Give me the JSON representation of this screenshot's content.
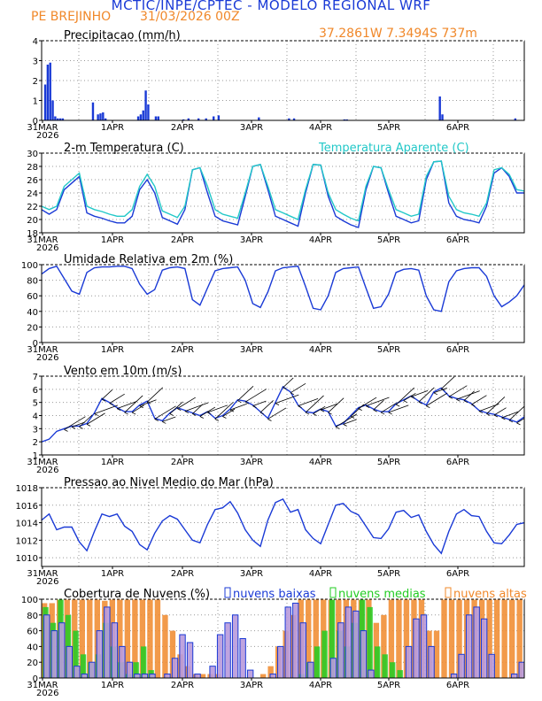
{
  "header": {
    "title": "MCTIC/INPE/CPTEC - MODELO REGIONAL WRF",
    "location": "PE BREJINHO",
    "date": "31/03/2026 00Z",
    "coords": "37.2861W 7.3494S 737m"
  },
  "colors": {
    "blue": "#1a3ad6",
    "orange": "#f0882a",
    "cyan": "#22c8c8",
    "green": "#22cc22",
    "grid": "#999999"
  },
  "x_labels": [
    "31MAR",
    "1APR",
    "2APR",
    "3APR",
    "4APR",
    "5APR",
    "6APR"
  ],
  "x_year": "2026",
  "chart_data": [
    {
      "type": "bar",
      "title": "Precipitacao (mm/h)",
      "ylim": [
        0,
        4
      ],
      "yticks": [
        "0",
        "1",
        "2",
        "3",
        "4"
      ],
      "x_unit": "hours since 31MAR 00Z",
      "series": [
        {
          "name": "Precipitacao",
          "color": "#1a3ad6",
          "x": [
            1,
            2,
            3,
            4,
            5,
            6,
            7,
            8,
            20,
            22,
            23,
            24,
            25,
            38,
            39,
            40,
            41,
            42,
            45,
            46,
            56,
            58,
            62,
            65,
            68,
            70,
            86,
            98,
            100,
            120,
            121,
            158,
            159,
            188
          ],
          "values": [
            1.8,
            2.8,
            2.9,
            1.0,
            0.2,
            0.1,
            0.1,
            0.1,
            0.9,
            0.3,
            0.35,
            0.4,
            0.1,
            0.2,
            0.3,
            0.5,
            1.5,
            0.8,
            0.2,
            0.2,
            0.05,
            0.1,
            0.1,
            0.1,
            0.2,
            0.25,
            0.15,
            0.1,
            0.1,
            0.05,
            0.05,
            1.2,
            0.3,
            0.1
          ]
        }
      ]
    },
    {
      "type": "line",
      "title": "2-m Temperatura (C)",
      "ylim": [
        18,
        30
      ],
      "yticks": [
        "18",
        "20",
        "22",
        "24",
        "26",
        "28",
        "30"
      ],
      "legend": "Temperatura Aparente (C)",
      "x": [
        0,
        3,
        6,
        9,
        12,
        15,
        18,
        21,
        24,
        27,
        30,
        33,
        36,
        39,
        42,
        45,
        48,
        51,
        54,
        57,
        60,
        63,
        66,
        69,
        72,
        75,
        78,
        81,
        84,
        87,
        90,
        93,
        96,
        99,
        102,
        105,
        108,
        111,
        114,
        117,
        120,
        123,
        126,
        129,
        132,
        135,
        138,
        141,
        144,
        147,
        150,
        153,
        156,
        159,
        162,
        165,
        168,
        171,
        174,
        177,
        180,
        183,
        186,
        189,
        192
      ],
      "series": [
        {
          "name": "Temperatura",
          "color": "#1a3ad6",
          "values": [
            21.5,
            20.8,
            21.5,
            24.5,
            25.5,
            26.5,
            21.0,
            20.5,
            20.2,
            19.8,
            19.5,
            19.5,
            20.5,
            24.5,
            26.0,
            24.0,
            20.3,
            19.8,
            19.3,
            21.5,
            27.5,
            27.8,
            24.0,
            20.5,
            19.8,
            19.5,
            19.2,
            23.5,
            28.0,
            28.3,
            24.5,
            20.5,
            20.0,
            19.5,
            19.0,
            24.0,
            28.3,
            28.2,
            23.5,
            20.5,
            19.8,
            19.2,
            18.8,
            24.5,
            28.0,
            27.8,
            24.0,
            20.5,
            20.0,
            19.5,
            19.8,
            26.0,
            28.7,
            28.8,
            22.5,
            20.5,
            20.0,
            19.8,
            19.5,
            22.0,
            27.0,
            27.8,
            26.5,
            24.0,
            24.0
          ]
        },
        {
          "name": "Temperatura Aparente",
          "color": "#22c8c8",
          "values": [
            22.0,
            21.5,
            22.0,
            25.0,
            26.0,
            27.0,
            22.0,
            21.5,
            21.2,
            20.8,
            20.5,
            20.5,
            21.5,
            25.0,
            26.8,
            25.0,
            21.3,
            20.8,
            20.3,
            22.0,
            27.5,
            27.8,
            25.0,
            21.5,
            20.8,
            20.5,
            20.2,
            24.0,
            28.0,
            28.3,
            25.0,
            21.5,
            21.0,
            20.5,
            20.0,
            24.5,
            28.3,
            28.2,
            24.0,
            21.5,
            20.8,
            20.2,
            19.8,
            25.0,
            28.0,
            27.8,
            24.5,
            21.5,
            21.0,
            20.5,
            20.8,
            26.5,
            28.7,
            28.8,
            23.5,
            21.5,
            21.0,
            20.8,
            20.5,
            22.5,
            27.5,
            27.8,
            26.8,
            24.5,
            24.3
          ]
        }
      ]
    },
    {
      "type": "line",
      "title": "Umidade Relativa em 2m (%)",
      "ylim": [
        0,
        100
      ],
      "yticks": [
        "0",
        "20",
        "40",
        "60",
        "80",
        "100"
      ],
      "x": [
        0,
        3,
        6,
        9,
        12,
        15,
        18,
        21,
        24,
        27,
        30,
        33,
        36,
        39,
        42,
        45,
        48,
        51,
        54,
        57,
        60,
        63,
        66,
        69,
        72,
        75,
        78,
        81,
        84,
        87,
        90,
        93,
        96,
        99,
        102,
        105,
        108,
        111,
        114,
        117,
        120,
        123,
        126,
        129,
        132,
        135,
        138,
        141,
        144,
        147,
        150,
        153,
        156,
        159,
        162,
        165,
        168,
        171,
        174,
        177,
        180,
        183,
        186,
        189,
        192
      ],
      "series": [
        {
          "name": "Umidade",
          "color": "#1a3ad6",
          "values": [
            88,
            95,
            98,
            82,
            66,
            62,
            90,
            96,
            97,
            97,
            98,
            98,
            95,
            75,
            62,
            68,
            93,
            96,
            97,
            95,
            55,
            48,
            70,
            92,
            95,
            96,
            97,
            80,
            50,
            45,
            65,
            92,
            96,
            97,
            98,
            72,
            44,
            42,
            60,
            90,
            95,
            96,
            97,
            70,
            44,
            46,
            62,
            90,
            94,
            95,
            93,
            60,
            42,
            40,
            78,
            92,
            95,
            96,
            96,
            85,
            60,
            46,
            52,
            60,
            74
          ]
        }
      ]
    },
    {
      "type": "line",
      "title": "Vento em 10m (m/s)",
      "ylim": [
        1,
        7
      ],
      "yticks": [
        "1",
        "2",
        "3",
        "4",
        "5",
        "6",
        "7"
      ],
      "x": [
        0,
        3,
        6,
        9,
        12,
        15,
        18,
        21,
        24,
        27,
        30,
        33,
        36,
        39,
        42,
        45,
        48,
        51,
        54,
        57,
        60,
        63,
        66,
        69,
        72,
        75,
        78,
        81,
        84,
        87,
        90,
        93,
        96,
        99,
        102,
        105,
        108,
        111,
        114,
        117,
        120,
        123,
        126,
        129,
        132,
        135,
        138,
        141,
        144,
        147,
        150,
        153,
        156,
        159,
        162,
        165,
        168,
        171,
        174,
        177,
        180,
        183,
        186,
        189,
        192
      ],
      "series": [
        {
          "name": "Vento",
          "color": "#1a3ad6",
          "values": [
            2.0,
            2.2,
            2.8,
            3.0,
            3.2,
            3.2,
            3.4,
            4.2,
            5.3,
            5.0,
            4.6,
            4.3,
            4.3,
            4.8,
            5.1,
            3.8,
            3.6,
            4.2,
            4.6,
            4.4,
            4.2,
            4.0,
            4.3,
            3.8,
            4.0,
            4.5,
            5.2,
            5.1,
            4.8,
            4.3,
            3.8,
            5.0,
            6.2,
            5.8,
            4.8,
            4.3,
            4.2,
            4.5,
            4.3,
            3.2,
            3.4,
            4.0,
            4.6,
            4.8,
            4.5,
            4.3,
            4.3,
            4.9,
            5.2,
            5.5,
            5.1,
            4.8,
            5.8,
            6.1,
            5.5,
            5.3,
            5.2,
            4.9,
            4.4,
            4.2,
            4.1,
            3.9,
            3.7,
            3.5,
            3.9
          ]
        }
      ]
    },
    {
      "type": "line",
      "title": "Pressao ao Nivel Medio do Mar (hPa)",
      "ylim": [
        1009,
        1018
      ],
      "yticks": [
        "1010",
        "1012",
        "1014",
        "1016",
        "1018"
      ],
      "x": [
        0,
        3,
        6,
        9,
        12,
        15,
        18,
        21,
        24,
        27,
        30,
        33,
        36,
        39,
        42,
        45,
        48,
        51,
        54,
        57,
        60,
        63,
        66,
        69,
        72,
        75,
        78,
        81,
        84,
        87,
        90,
        93,
        96,
        99,
        102,
        105,
        108,
        111,
        114,
        117,
        120,
        123,
        126,
        129,
        132,
        135,
        138,
        141,
        144,
        147,
        150,
        153,
        156,
        159,
        162,
        165,
        168,
        171,
        174,
        177,
        180,
        183,
        186,
        189,
        192
      ],
      "series": [
        {
          "name": "Pressao",
          "color": "#1a3ad6",
          "values": [
            1014.3,
            1015.0,
            1013.2,
            1013.5,
            1013.5,
            1011.8,
            1010.8,
            1013.0,
            1015.0,
            1014.7,
            1015.0,
            1013.6,
            1013.0,
            1011.5,
            1010.9,
            1012.8,
            1014.2,
            1014.8,
            1014.4,
            1013.2,
            1012.0,
            1011.7,
            1013.8,
            1015.5,
            1015.7,
            1016.4,
            1015.1,
            1013.2,
            1012.0,
            1011.3,
            1014.3,
            1016.3,
            1016.7,
            1015.2,
            1015.5,
            1013.2,
            1012.2,
            1011.6,
            1013.8,
            1016.0,
            1016.2,
            1015.3,
            1014.9,
            1013.6,
            1012.3,
            1012.2,
            1013.3,
            1015.2,
            1015.4,
            1014.6,
            1014.9,
            1013.0,
            1011.5,
            1010.5,
            1013.0,
            1015.0,
            1015.5,
            1014.8,
            1014.7,
            1013.0,
            1011.7,
            1011.6,
            1012.6,
            1013.8,
            1014.0
          ]
        }
      ]
    },
    {
      "type": "bar",
      "title": "Cobertura de Nuvens (%)",
      "ylim": [
        0,
        100
      ],
      "yticks": [
        "0",
        "20",
        "40",
        "60",
        "80",
        "100"
      ],
      "legend": [
        "nuvens baixas",
        "nuvens medias",
        "nuvens altas"
      ],
      "x": [
        0,
        3,
        6,
        9,
        12,
        15,
        18,
        21,
        24,
        27,
        30,
        33,
        36,
        39,
        42,
        45,
        48,
        51,
        54,
        57,
        60,
        63,
        66,
        69,
        72,
        75,
        78,
        81,
        84,
        87,
        90,
        93,
        96,
        99,
        102,
        105,
        108,
        111,
        114,
        117,
        120,
        123,
        126,
        129,
        132,
        135,
        138,
        141,
        144,
        147,
        150,
        153,
        156,
        159,
        162,
        165,
        168,
        171,
        174,
        177,
        180,
        183,
        186,
        189,
        192
      ],
      "series": [
        {
          "name": "nuvens altas",
          "color": "#f0882a",
          "values": [
            95,
            95,
            100,
            100,
            100,
            100,
            100,
            100,
            98,
            100,
            100,
            100,
            100,
            100,
            100,
            100,
            80,
            60,
            30,
            15,
            5,
            5,
            5,
            5,
            0,
            0,
            0,
            0,
            0,
            5,
            15,
            40,
            60,
            80,
            100,
            100,
            100,
            100,
            100,
            100,
            100,
            100,
            100,
            100,
            70,
            80,
            100,
            100,
            100,
            100,
            100,
            60,
            60,
            100,
            100,
            100,
            100,
            100,
            100,
            100,
            100,
            100,
            100,
            100,
            100
          ]
        },
        {
          "name": "nuvens medias",
          "color": "#22cc22",
          "values": [
            90,
            70,
            100,
            80,
            60,
            30,
            20,
            30,
            70,
            40,
            20,
            5,
            20,
            40,
            10,
            0,
            0,
            0,
            0,
            0,
            0,
            0,
            0,
            0,
            0,
            0,
            0,
            0,
            0,
            0,
            0,
            0,
            0,
            0,
            5,
            20,
            40,
            60,
            100,
            60,
            40,
            70,
            100,
            90,
            40,
            30,
            20,
            10,
            0,
            0,
            0,
            0,
            0,
            0,
            0,
            0,
            0,
            0,
            0,
            0,
            0,
            0,
            0,
            0,
            0
          ]
        },
        {
          "name": "nuvens baixas",
          "color": "#1a3ad6",
          "values": [
            80,
            60,
            70,
            40,
            15,
            5,
            20,
            60,
            90,
            70,
            40,
            20,
            5,
            5,
            5,
            0,
            5,
            25,
            55,
            45,
            5,
            0,
            15,
            55,
            70,
            80,
            50,
            10,
            0,
            0,
            5,
            40,
            90,
            95,
            70,
            20,
            0,
            0,
            25,
            70,
            90,
            85,
            60,
            10,
            0,
            0,
            0,
            0,
            40,
            75,
            80,
            40,
            0,
            0,
            5,
            30,
            80,
            90,
            75,
            30,
            0,
            0,
            5,
            20,
            20
          ]
        }
      ]
    }
  ]
}
